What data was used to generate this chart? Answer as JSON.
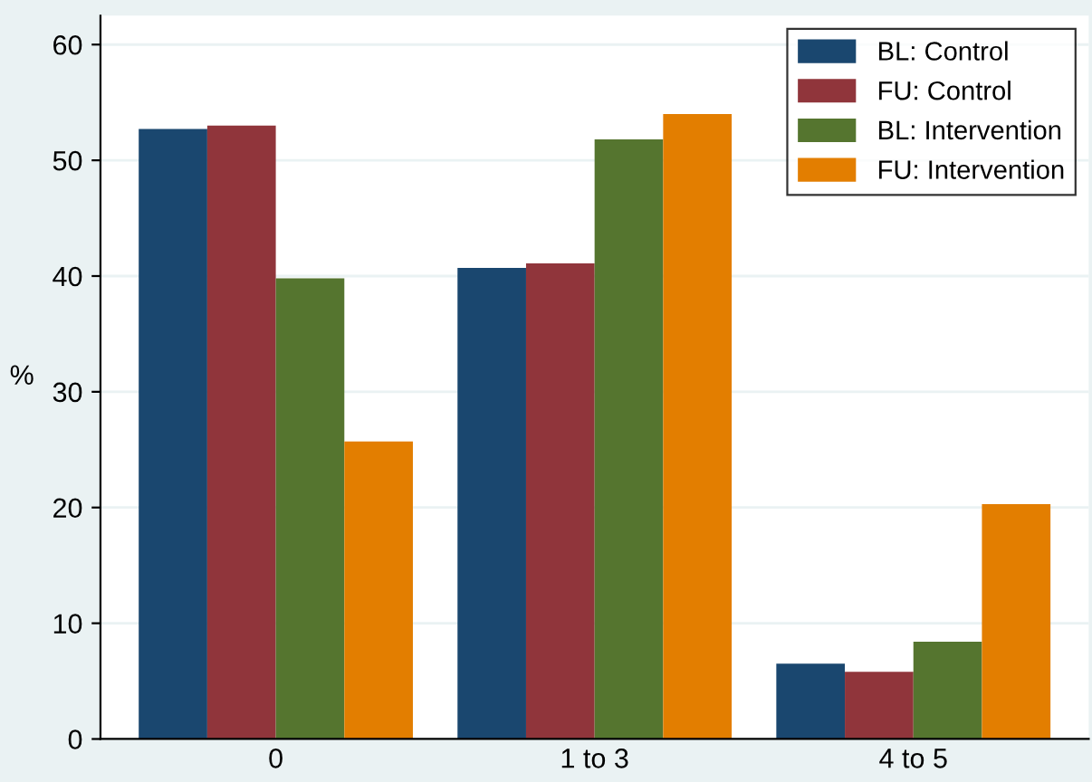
{
  "chart_data": {
    "type": "bar",
    "ylabel": "%",
    "categories": [
      "0",
      "1 to 3",
      "4 to 5"
    ],
    "series": [
      {
        "name": "BL: Control",
        "color": "#1a476f",
        "values": [
          52.7,
          40.7,
          6.5
        ]
      },
      {
        "name": "FU: Control",
        "color": "#90353b",
        "values": [
          53.0,
          41.1,
          5.8
        ]
      },
      {
        "name": "BL: Intervention",
        "color": "#55752f",
        "values": [
          39.8,
          51.8,
          8.4
        ]
      },
      {
        "name": "FU: Intervention",
        "color": "#e37e00",
        "values": [
          25.7,
          54.0,
          20.3
        ]
      }
    ],
    "ylim": [
      0,
      62.5
    ],
    "yticks": [
      0,
      10,
      20,
      30,
      40,
      50,
      60
    ],
    "grid": "y",
    "legend": "top right"
  }
}
